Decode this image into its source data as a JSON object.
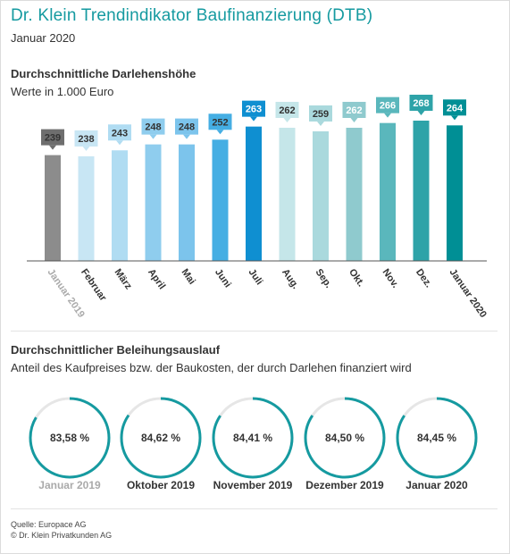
{
  "header": {
    "title": "Dr. Klein Trendindikator Baufinanzierung (DTB)",
    "date": "Januar 2020"
  },
  "section1": {
    "title": "Durchschnittliche Darlehenshöhe",
    "subtitle": "Werte in 1.000 Euro"
  },
  "section2": {
    "title": "Durchschnittlicher Beleihungsauslauf",
    "subtitle": "Anteil des Kaufpreises bzw. der Baukosten, der durch Darlehen finanziert wird"
  },
  "chart_data": [
    {
      "type": "bar",
      "categories": [
        "Januar 2019",
        "Februar",
        "März",
        "April",
        "Mai",
        "Juni",
        "Juli",
        "Aug.",
        "Sep.",
        "Okt.",
        "Nov.",
        "Dez.",
        "Januar 2020"
      ],
      "values": [
        239,
        238,
        243,
        248,
        248,
        252,
        263,
        262,
        259,
        262,
        266,
        268,
        264
      ],
      "value_labels": [
        "239",
        "238",
        "243",
        "248",
        "248",
        "252",
        "263",
        "262",
        "259",
        "262",
        "266",
        "268",
        "264"
      ],
      "colors": [
        "#8c8c8c",
        "#c8e6f4",
        "#b0dcf2",
        "#8fcdee",
        "#7cc4ec",
        "#45aee3",
        "#0f8fd1",
        "#c5e6e9",
        "#aad9dd",
        "#8fcace",
        "#5ab7bc",
        "#2ea3a8",
        "#008f95"
      ],
      "label_colors": [
        "#6e6e6e",
        "#c8e6f4",
        "#b0dcf2",
        "#8fcdee",
        "#7cc4ec",
        "#45aee3",
        "#0f8fd1",
        "#c5e6e9",
        "#aad9dd",
        "#8fcace",
        "#5ab7bc",
        "#2ea3a8",
        "#008f95"
      ],
      "ylim": [
        150,
        270
      ]
    },
    {
      "type": "gauge",
      "unit": "%",
      "items": [
        {
          "label": "Januar 2019",
          "value": 83.58,
          "display": "83,58 %"
        },
        {
          "label": "Oktober 2019",
          "value": 84.62,
          "display": "84,62 %"
        },
        {
          "label": "November 2019",
          "value": 84.41,
          "display": "84,41 %"
        },
        {
          "label": "Dezember 2019",
          "value": 84.5,
          "display": "84,50 %"
        },
        {
          "label": "Januar 2020",
          "value": 84.45,
          "display": "84,45 %"
        }
      ],
      "arc_color": "#159aa0",
      "track_color": "#e6e6e6"
    }
  ],
  "footer": {
    "source": "Quelle: Europace AG",
    "copyright": "© Dr. Klein Privatkunden AG"
  }
}
